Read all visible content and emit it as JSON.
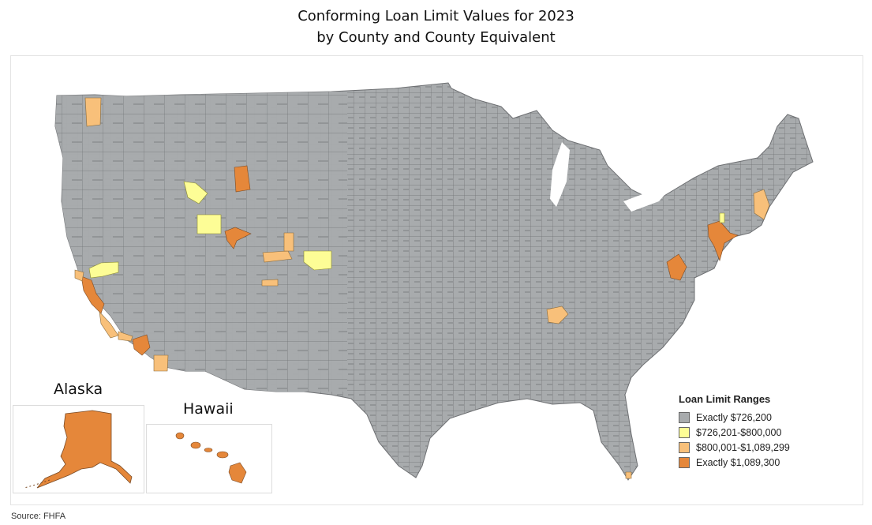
{
  "header": {
    "title_line1": "Conforming Loan Limit Values for 2023",
    "title_line2": "by County and County Equivalent"
  },
  "insets": {
    "alaska_label": "Alaska",
    "hawaii_label": "Hawaii"
  },
  "legend": {
    "title": "Loan Limit Ranges",
    "items": [
      {
        "label": "Exactly $726,200",
        "color": "#a8abad"
      },
      {
        "label": "$726,201-$800,000",
        "color": "#fdfd96"
      },
      {
        "label": "$800,001-$1,089,299",
        "color": "#f8c07a"
      },
      {
        "label": "Exactly $1,089,300",
        "color": "#e5873a"
      }
    ]
  },
  "footer": {
    "source": "Source: FHFA"
  }
}
